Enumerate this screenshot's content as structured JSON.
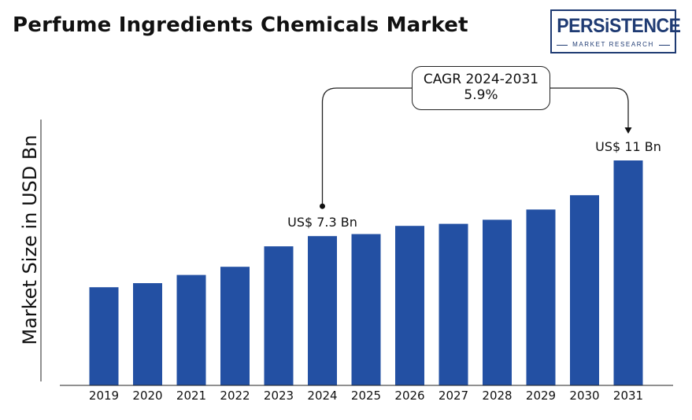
{
  "title": "Perfume Ingredients Chemicals Market",
  "logo": {
    "name": "PERSiSTENCE",
    "subtitle": "MARKET RESEARCH"
  },
  "annotation": {
    "cagr_label": "CAGR 2024-2031",
    "cagr_value": "5.9%"
  },
  "colors": {
    "bar": "#2350a3",
    "text": "#111111",
    "logo": "#1f3b73"
  },
  "chart_data": {
    "type": "bar",
    "title": "Perfume Ingredients Chemicals Market",
    "xlabel": "",
    "ylabel": "Market Size in USD Bn",
    "categories": [
      "2019",
      "2020",
      "2021",
      "2022",
      "2023",
      "2024",
      "2025",
      "2026",
      "2027",
      "2028",
      "2029",
      "2030",
      "2031"
    ],
    "values": [
      4.8,
      5.0,
      5.4,
      5.8,
      6.8,
      7.3,
      7.4,
      7.8,
      7.9,
      8.1,
      8.6,
      9.3,
      11.0
    ],
    "ylim": [
      0,
      11.0
    ],
    "grid": false,
    "legend": "none",
    "data_labels": [
      {
        "category": "2024",
        "text": "US$ 7.3 Bn"
      },
      {
        "category": "2031",
        "text": "US$ 11 Bn"
      }
    ]
  }
}
